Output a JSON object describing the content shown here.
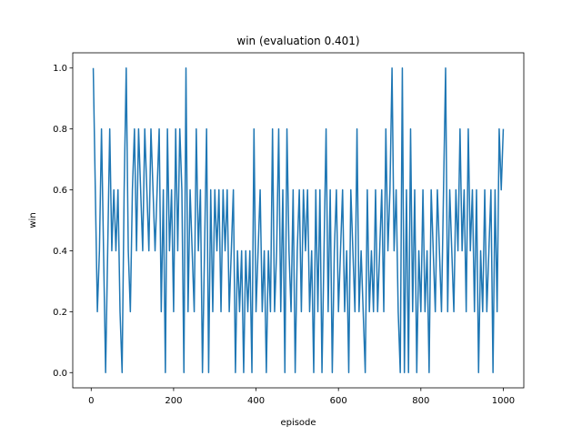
{
  "chart_data": {
    "type": "line",
    "title": "win (evaluation 0.401)",
    "xlabel": "episode",
    "ylabel": "win",
    "color": "#1f77b4",
    "x": [
      5,
      10,
      15,
      20,
      25,
      30,
      35,
      40,
      45,
      50,
      55,
      60,
      65,
      70,
      75,
      80,
      85,
      90,
      95,
      100,
      105,
      110,
      115,
      120,
      125,
      130,
      135,
      140,
      145,
      150,
      155,
      160,
      165,
      170,
      175,
      180,
      185,
      190,
      195,
      200,
      205,
      210,
      215,
      220,
      225,
      230,
      235,
      240,
      245,
      250,
      255,
      260,
      265,
      270,
      275,
      280,
      285,
      290,
      295,
      300,
      305,
      310,
      315,
      320,
      325,
      330,
      335,
      340,
      345,
      350,
      355,
      360,
      365,
      370,
      375,
      380,
      385,
      390,
      395,
      400,
      405,
      410,
      415,
      420,
      425,
      430,
      435,
      440,
      445,
      450,
      455,
      460,
      465,
      470,
      475,
      480,
      485,
      490,
      495,
      500,
      505,
      510,
      515,
      520,
      525,
      530,
      535,
      540,
      545,
      550,
      555,
      560,
      565,
      570,
      575,
      580,
      585,
      590,
      595,
      600,
      605,
      610,
      615,
      620,
      625,
      630,
      635,
      640,
      645,
      650,
      655,
      660,
      665,
      670,
      675,
      680,
      685,
      690,
      695,
      700,
      705,
      710,
      715,
      720,
      725,
      730,
      735,
      740,
      745,
      750,
      755,
      760,
      765,
      770,
      775,
      780,
      785,
      790,
      795,
      800,
      805,
      810,
      815,
      820,
      825,
      830,
      835,
      840,
      845,
      850,
      855,
      860,
      865,
      870,
      875,
      880,
      885,
      890,
      895,
      900,
      905,
      910,
      915,
      920,
      925,
      930,
      935,
      940,
      945,
      950,
      955,
      960,
      965,
      970,
      975,
      980,
      985,
      990,
      995,
      1000
    ],
    "values": [
      1.0,
      0.6,
      0.2,
      0.4,
      0.8,
      0.4,
      0.0,
      0.4,
      0.8,
      0.4,
      0.6,
      0.4,
      0.6,
      0.2,
      0.0,
      0.6,
      1.0,
      0.4,
      0.2,
      0.6,
      0.8,
      0.4,
      0.8,
      0.6,
      0.4,
      0.8,
      0.6,
      0.4,
      0.8,
      0.6,
      0.4,
      0.6,
      0.8,
      0.2,
      0.6,
      0.0,
      0.8,
      0.4,
      0.6,
      0.2,
      0.8,
      0.4,
      0.8,
      0.6,
      0.0,
      1.0,
      0.2,
      0.6,
      0.4,
      0.2,
      0.8,
      0.4,
      0.6,
      0.0,
      0.4,
      0.8,
      0.0,
      0.6,
      0.2,
      0.6,
      0.4,
      0.6,
      0.2,
      0.6,
      0.4,
      0.6,
      0.2,
      0.4,
      0.6,
      0.0,
      0.4,
      0.2,
      0.4,
      0.0,
      0.4,
      0.2,
      0.4,
      0.0,
      0.8,
      0.2,
      0.4,
      0.6,
      0.2,
      0.4,
      0.0,
      0.4,
      0.2,
      0.8,
      0.2,
      0.4,
      0.8,
      0.2,
      0.6,
      0.0,
      0.8,
      0.4,
      0.2,
      0.6,
      0.0,
      0.4,
      0.6,
      0.2,
      0.6,
      0.4,
      0.6,
      0.2,
      0.4,
      0.0,
      0.6,
      0.2,
      0.6,
      0.0,
      0.4,
      0.8,
      0.2,
      0.6,
      0.0,
      0.4,
      0.6,
      0.2,
      0.4,
      0.6,
      0.2,
      0.4,
      0.0,
      0.6,
      0.4,
      0.2,
      0.8,
      0.2,
      0.4,
      0.2,
      0.0,
      0.6,
      0.2,
      0.4,
      0.2,
      0.6,
      0.2,
      0.4,
      0.6,
      0.2,
      0.8,
      0.4,
      0.6,
      1.0,
      0.4,
      0.6,
      0.2,
      0.0,
      1.0,
      0.0,
      0.6,
      0.0,
      0.8,
      0.2,
      0.6,
      0.0,
      0.4,
      0.2,
      0.6,
      0.2,
      0.4,
      0.0,
      0.6,
      0.4,
      0.2,
      0.6,
      0.4,
      0.2,
      0.6,
      1.0,
      0.2,
      0.6,
      0.4,
      0.2,
      0.6,
      0.4,
      0.8,
      0.4,
      0.6,
      0.2,
      0.8,
      0.4,
      0.6,
      0.2,
      0.6,
      0.0,
      0.4,
      0.2,
      0.6,
      0.2,
      0.4,
      0.6,
      0.0,
      0.6,
      0.2,
      0.8,
      0.6,
      0.8
    ],
    "xlim": [
      -44.75,
      1049.75
    ],
    "xticks": [
      0,
      200,
      400,
      600,
      800,
      1000
    ],
    "ylim": [
      -0.05,
      1.05
    ],
    "yticks": [
      {
        "value": 0,
        "label": "0.0"
      },
      {
        "value": 0.2,
        "label": "0.2"
      },
      {
        "value": 0.4,
        "label": "0.4"
      },
      {
        "value": 0.6,
        "label": "0.6"
      },
      {
        "value": 0.8,
        "label": "0.8"
      },
      {
        "value": 1,
        "label": "1.0"
      }
    ]
  }
}
